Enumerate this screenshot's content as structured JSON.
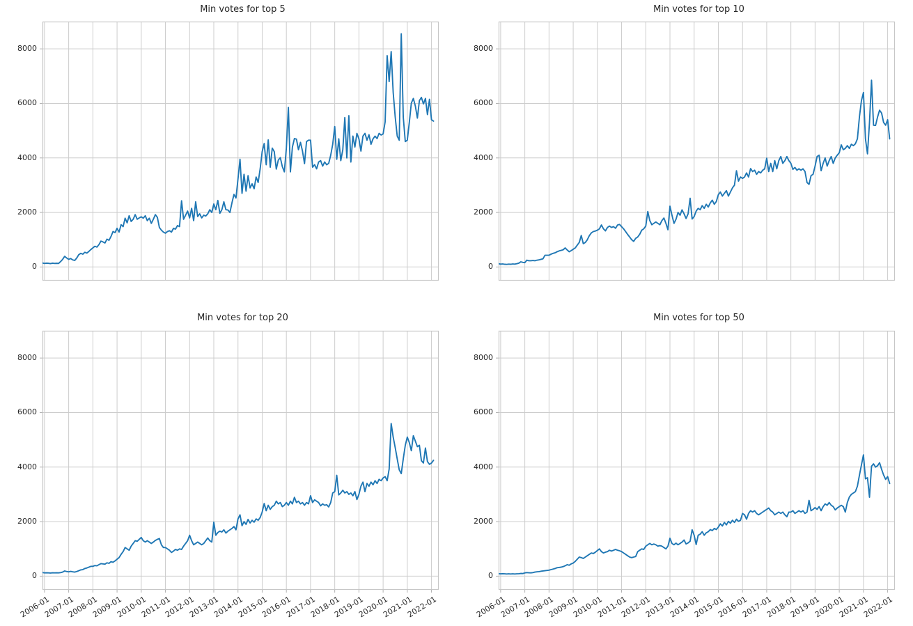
{
  "figure": {
    "background": "#ffffff",
    "grid_color": "#cccccc",
    "spine_color": "#c6c6c6",
    "tick_color": "#b0b0b0",
    "text_color": "#262626",
    "line_color": "#1f77b4"
  },
  "chart_data": [
    {
      "type": "line",
      "title": "Min votes for top 5",
      "xlabel": "",
      "ylabel": "",
      "legend": null,
      "grid": true,
      "ylim": [
        -500,
        9000
      ],
      "y_ticks": [
        0,
        2000,
        4000,
        6000,
        8000
      ],
      "x_start_month": "2005-12",
      "x_step": "1 month",
      "x_tick_labels": [
        "2006-01",
        "2007-01",
        "2008-01",
        "2009-01",
        "2010-01",
        "2011-01",
        "2012-01",
        "2013-01",
        "2014-01",
        "2015-01",
        "2016-01",
        "2017-01",
        "2018-01",
        "2019-01",
        "2020-01",
        "2021-01",
        "2022-01"
      ],
      "values": [
        145,
        130,
        140,
        135,
        125,
        140,
        130,
        135,
        130,
        200,
        280,
        390,
        330,
        280,
        310,
        260,
        240,
        330,
        450,
        500,
        470,
        540,
        510,
        570,
        640,
        700,
        760,
        730,
        820,
        950,
        920,
        880,
        1020,
        980,
        1120,
        1300,
        1260,
        1420,
        1280,
        1550,
        1480,
        1790,
        1620,
        1880,
        1670,
        1750,
        1920,
        1750,
        1800,
        1840,
        1790,
        1880,
        1700,
        1790,
        1600,
        1750,
        1920,
        1820,
        1450,
        1350,
        1280,
        1240,
        1300,
        1330,
        1280,
        1420,
        1390,
        1520,
        1480,
        2430,
        1750,
        1900,
        2050,
        1800,
        2150,
        1700,
        2390,
        1850,
        1950,
        1800,
        1900,
        1870,
        1950,
        2100,
        2000,
        2310,
        2100,
        2440,
        1970,
        2100,
        2390,
        2100,
        2090,
        2000,
        2350,
        2660,
        2530,
        3230,
        3950,
        2700,
        3400,
        2780,
        3350,
        2900,
        3050,
        2870,
        3300,
        3100,
        3600,
        4230,
        4530,
        3750,
        4660,
        3660,
        4360,
        4230,
        3590,
        3920,
        4010,
        3680,
        3490,
        4360,
        5850,
        3490,
        4400,
        4710,
        4690,
        4300,
        4570,
        4250,
        3790,
        4600,
        4650,
        4650,
        3660,
        3750,
        3600,
        3850,
        3900,
        3700,
        3850,
        3750,
        3800,
        4100,
        4500,
        5150,
        3950,
        4700,
        3900,
        4300,
        5480,
        4000,
        5550,
        3850,
        4800,
        4400,
        4900,
        4700,
        4250,
        4800,
        4900,
        4650,
        4850,
        4500,
        4700,
        4800,
        4710,
        4900,
        4840,
        4880,
        5320,
        7750,
        6800,
        7900,
        6400,
        5500,
        4800,
        4650,
        8550,
        5500,
        4600,
        4650,
        5300,
        6010,
        6180,
        5900,
        5460,
        6100,
        6220,
        5980,
        6180,
        5590,
        6150,
        5400,
        5350
      ]
    },
    {
      "type": "line",
      "title": "Min votes for top 10",
      "xlabel": "",
      "ylabel": "",
      "legend": null,
      "grid": true,
      "ylim": [
        -500,
        9000
      ],
      "y_ticks": [
        0,
        2000,
        4000,
        6000,
        8000
      ],
      "x_start_month": "2005-12",
      "x_step": "1 month",
      "x_tick_labels": [
        "2006-01",
        "2007-01",
        "2008-01",
        "2009-01",
        "2010-01",
        "2011-01",
        "2012-01",
        "2013-01",
        "2014-01",
        "2015-01",
        "2016-01",
        "2017-01",
        "2018-01",
        "2019-01",
        "2020-01",
        "2021-01",
        "2022-01"
      ],
      "values": [
        120,
        105,
        110,
        100,
        95,
        105,
        100,
        110,
        105,
        120,
        140,
        190,
        170,
        160,
        250,
        230,
        230,
        240,
        230,
        250,
        260,
        280,
        300,
        430,
        430,
        430,
        470,
        500,
        520,
        560,
        590,
        610,
        630,
        700,
        625,
        560,
        600,
        650,
        700,
        800,
        900,
        1155,
        855,
        900,
        1000,
        1150,
        1250,
        1300,
        1320,
        1350,
        1400,
        1540,
        1400,
        1325,
        1450,
        1500,
        1450,
        1480,
        1420,
        1540,
        1560,
        1480,
        1400,
        1300,
        1195,
        1100,
        1000,
        940,
        1050,
        1100,
        1200,
        1350,
        1400,
        1500,
        2035,
        1700,
        1550,
        1600,
        1650,
        1600,
        1550,
        1700,
        1795,
        1600,
        1365,
        2230,
        1900,
        1600,
        1750,
        2000,
        1900,
        2095,
        1950,
        1780,
        1950,
        2520,
        1760,
        1850,
        2050,
        2150,
        2100,
        2250,
        2150,
        2300,
        2200,
        2350,
        2450,
        2300,
        2400,
        2650,
        2750,
        2600,
        2700,
        2800,
        2600,
        2750,
        2900,
        3000,
        3530,
        3150,
        3300,
        3250,
        3300,
        3450,
        3300,
        3610,
        3500,
        3550,
        3400,
        3500,
        3450,
        3550,
        3600,
        3990,
        3500,
        3800,
        3500,
        3900,
        3600,
        3900,
        4050,
        3800,
        3900,
        4050,
        3900,
        3800,
        3580,
        3650,
        3550,
        3600,
        3550,
        3600,
        3500,
        3100,
        3030,
        3350,
        3400,
        3700,
        4050,
        4100,
        3530,
        3800,
        4000,
        3700,
        3900,
        4050,
        3800,
        4000,
        4100,
        4190,
        4480,
        4300,
        4350,
        4450,
        4350,
        4500,
        4450,
        4520,
        4700,
        5500,
        6100,
        6400,
        4700,
        4150,
        5300,
        6850,
        5200,
        5190,
        5500,
        5750,
        5645,
        5300,
        5200,
        5400,
        4700
      ]
    },
    {
      "type": "line",
      "title": "Min votes for top 20",
      "xlabel": "",
      "ylabel": "",
      "legend": null,
      "grid": true,
      "ylim": [
        -500,
        9000
      ],
      "y_ticks": [
        0,
        2000,
        4000,
        6000,
        8000
      ],
      "x_start_month": "2005-12",
      "x_step": "1 month",
      "x_tick_labels": [
        "2006-01",
        "2007-01",
        "2008-01",
        "2009-01",
        "2010-01",
        "2011-01",
        "2012-01",
        "2013-01",
        "2014-01",
        "2015-01",
        "2016-01",
        "2017-01",
        "2018-01",
        "2019-01",
        "2020-01",
        "2021-01",
        "2022-01"
      ],
      "values": [
        135,
        120,
        125,
        120,
        115,
        125,
        120,
        125,
        120,
        130,
        150,
        190,
        170,
        160,
        175,
        160,
        150,
        170,
        200,
        230,
        240,
        280,
        300,
        330,
        360,
        360,
        390,
        380,
        420,
        460,
        450,
        440,
        490,
        470,
        530,
        510,
        560,
        620,
        680,
        800,
        900,
        1050,
        1000,
        950,
        1100,
        1200,
        1300,
        1280,
        1350,
        1420,
        1300,
        1250,
        1300,
        1250,
        1200,
        1250,
        1310,
        1350,
        1380,
        1150,
        1050,
        1050,
        1000,
        950,
        870,
        920,
        980,
        950,
        1000,
        980,
        1100,
        1200,
        1300,
        1500,
        1300,
        1150,
        1200,
        1250,
        1200,
        1150,
        1200,
        1300,
        1400,
        1300,
        1250,
        1980,
        1500,
        1600,
        1650,
        1620,
        1700,
        1580,
        1650,
        1700,
        1750,
        1820,
        1700,
        2100,
        2250,
        1850,
        2000,
        1900,
        2080,
        1950,
        2050,
        1980,
        2100,
        2050,
        2150,
        2350,
        2665,
        2400,
        2600,
        2450,
        2550,
        2600,
        2750,
        2650,
        2700,
        2550,
        2600,
        2700,
        2600,
        2750,
        2650,
        2890,
        2700,
        2750,
        2650,
        2700,
        2600,
        2700,
        2650,
        2950,
        2700,
        2800,
        2750,
        2700,
        2580,
        2650,
        2600,
        2620,
        2540,
        2700,
        3050,
        3100,
        3700,
        2980,
        3050,
        3150,
        3050,
        3100,
        3000,
        3050,
        2950,
        3100,
        2810,
        3000,
        3300,
        3450,
        3100,
        3400,
        3300,
        3450,
        3350,
        3500,
        3400,
        3550,
        3500,
        3600,
        3650,
        3500,
        3930,
        5600,
        5100,
        4715,
        4300,
        3900,
        3760,
        4300,
        4800,
        5100,
        4900,
        4600,
        5150,
        4950,
        4750,
        4800,
        4235,
        4150,
        4700,
        4200,
        4100,
        4150,
        4250
      ]
    },
    {
      "type": "line",
      "title": "Min votes for top 50",
      "xlabel": "",
      "ylabel": "",
      "legend": null,
      "grid": true,
      "ylim": [
        -500,
        9000
      ],
      "y_ticks": [
        0,
        2000,
        4000,
        6000,
        8000
      ],
      "x_start_month": "2005-12",
      "x_step": "1 month",
      "x_tick_labels": [
        "2006-01",
        "2007-01",
        "2008-01",
        "2009-01",
        "2010-01",
        "2011-01",
        "2012-01",
        "2013-01",
        "2014-01",
        "2015-01",
        "2016-01",
        "2017-01",
        "2018-01",
        "2019-01",
        "2020-01",
        "2021-01",
        "2022-01"
      ],
      "values": [
        90,
        85,
        90,
        85,
        80,
        85,
        80,
        85,
        80,
        85,
        90,
        100,
        95,
        120,
        130,
        125,
        120,
        130,
        150,
        160,
        165,
        180,
        190,
        200,
        210,
        220,
        240,
        260,
        280,
        310,
        320,
        330,
        350,
        380,
        420,
        400,
        450,
        480,
        540,
        620,
        700,
        680,
        650,
        700,
        750,
        800,
        850,
        830,
        880,
        940,
        1000,
        900,
        850,
        880,
        900,
        950,
        920,
        950,
        980,
        950,
        930,
        900,
        850,
        800,
        750,
        700,
        680,
        700,
        720,
        900,
        950,
        1000,
        980,
        1100,
        1150,
        1200,
        1150,
        1180,
        1150,
        1100,
        1120,
        1100,
        1050,
        1000,
        1100,
        1390,
        1200,
        1150,
        1210,
        1150,
        1200,
        1250,
        1325,
        1180,
        1220,
        1280,
        1700,
        1500,
        1160,
        1500,
        1540,
        1630,
        1500,
        1590,
        1630,
        1710,
        1670,
        1750,
        1710,
        1800,
        1920,
        1840,
        1970,
        1880,
        2010,
        1940,
        2050,
        1970,
        2090,
        2010,
        2050,
        2300,
        2250,
        2090,
        2300,
        2400,
        2350,
        2400,
        2300,
        2250,
        2300,
        2350,
        2400,
        2450,
        2500,
        2400,
        2350,
        2250,
        2300,
        2350,
        2300,
        2350,
        2250,
        2180,
        2350,
        2350,
        2400,
        2300,
        2350,
        2400,
        2350,
        2400,
        2300,
        2350,
        2780,
        2400,
        2450,
        2515,
        2450,
        2550,
        2400,
        2550,
        2650,
        2600,
        2700,
        2600,
        2550,
        2430,
        2500,
        2550,
        2600,
        2550,
        2350,
        2700,
        2900,
        3000,
        3050,
        3100,
        3300,
        3700,
        4080,
        4450,
        3570,
        3610,
        2895,
        4030,
        4120,
        4000,
        4050,
        4160,
        3920,
        3710,
        3550,
        3650,
        3400
      ]
    }
  ]
}
